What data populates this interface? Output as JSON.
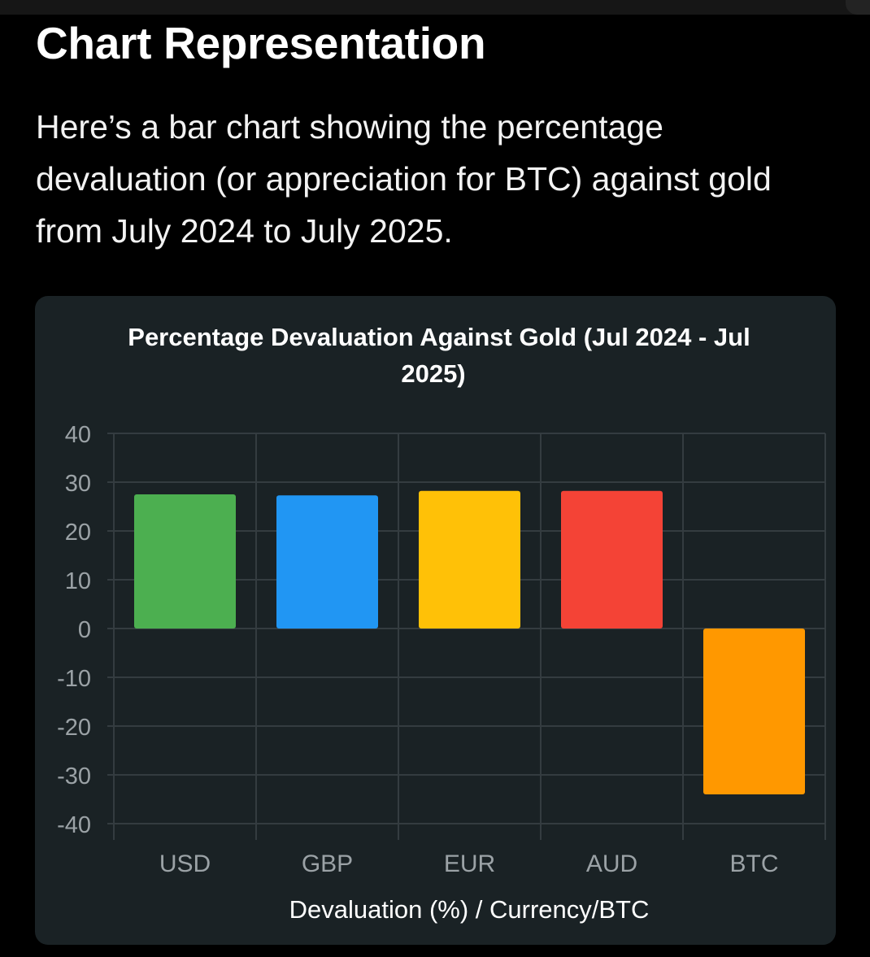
{
  "page": {
    "heading": "Chart Representation",
    "intro": "Here’s a bar chart showing the percentage devaluation (or appreciation for BTC) against gold from July 2024 to July 2025."
  },
  "colors": {
    "background": "#000000",
    "card": "#1a2225",
    "grid": "#343c40",
    "tick_label": "#9ba2a6",
    "title": "#ffffff"
  },
  "chart_data": {
    "type": "bar",
    "title_lines": [
      "Percentage Devaluation Against Gold (Jul 2024 - Jul",
      "2025)"
    ],
    "categories": [
      "USD",
      "GBP",
      "EUR",
      "AUD",
      "BTC"
    ],
    "series": [
      {
        "name": "Devaluation (%)",
        "values": [
          27.5,
          27.3,
          28.2,
          28.2,
          -34.0
        ],
        "colors": [
          "#4caf50",
          "#2196f3",
          "#ffc107",
          "#f44336",
          "#ff9800"
        ]
      }
    ],
    "xlabel": "Devaluation (%) / Currency/BTC",
    "ylabel": "",
    "ylim": [
      -40,
      40
    ],
    "yticks": [
      "40",
      "30",
      "20",
      "10",
      "0",
      "-10",
      "-20",
      "-30",
      "-40"
    ],
    "grid": true,
    "legend": "none"
  }
}
